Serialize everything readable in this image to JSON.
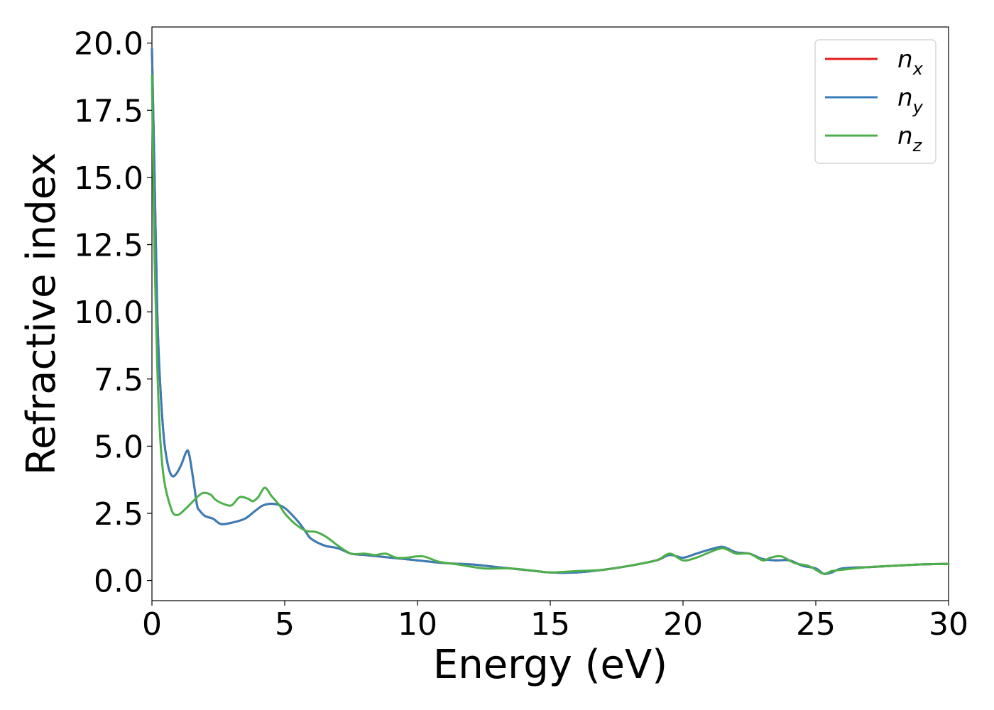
{
  "chart_data": {
    "type": "line",
    "title": "",
    "xlabel": "Energy (eV)",
    "ylabel": "Refractive index",
    "xlim": [
      0,
      30
    ],
    "ylim": [
      -0.75,
      20.6
    ],
    "xticks": [
      0,
      5,
      10,
      15,
      20,
      25,
      30
    ],
    "yticks": [
      0.0,
      2.5,
      5.0,
      7.5,
      10.0,
      12.5,
      15.0,
      17.5,
      20.0
    ],
    "xtick_labels": [
      "0",
      "5",
      "10",
      "15",
      "20",
      "25",
      "30"
    ],
    "ytick_labels": [
      "0.0",
      "2.5",
      "5.0",
      "7.5",
      "10.0",
      "12.5",
      "15.0",
      "17.5",
      "20.0"
    ],
    "grid": false,
    "legend_position": "top-right",
    "series": [
      {
        "name": "n_x",
        "label_base": "n",
        "label_sub": "x",
        "color": "#e41a1c",
        "x": [
          0,
          0.1,
          0.2,
          0.3,
          0.45,
          0.6,
          0.75,
          0.9,
          1.1,
          1.3,
          1.4,
          1.55,
          1.7,
          1.8,
          2.0,
          2.3,
          2.6,
          3.0,
          3.5,
          3.9,
          4.2,
          4.6,
          5.0,
          5.5,
          5.8,
          6.0,
          6.5,
          7.0,
          7.5,
          8.0,
          8.5,
          9.0,
          10.0,
          11.0,
          12.0,
          13.0,
          14.0,
          15.0,
          16.0,
          17.0,
          18.0,
          19.0,
          19.5,
          20.0,
          20.5,
          21.0,
          21.5,
          22.0,
          22.5,
          23.0,
          23.5,
          24.0,
          24.5,
          25.0,
          25.3,
          25.6,
          26.0,
          27.0,
          28.0,
          29.0,
          30.0
        ],
        "y": [
          19.8,
          15.0,
          10.0,
          7.5,
          5.3,
          4.3,
          3.9,
          3.95,
          4.3,
          4.8,
          4.7,
          3.8,
          2.8,
          2.6,
          2.4,
          2.3,
          2.1,
          2.15,
          2.3,
          2.6,
          2.8,
          2.85,
          2.7,
          2.2,
          1.8,
          1.55,
          1.3,
          1.2,
          1.0,
          0.95,
          0.9,
          0.85,
          0.75,
          0.65,
          0.6,
          0.5,
          0.4,
          0.3,
          0.3,
          0.4,
          0.55,
          0.75,
          0.95,
          0.85,
          1.0,
          1.15,
          1.25,
          1.05,
          1.0,
          0.8,
          0.75,
          0.75,
          0.55,
          0.45,
          0.25,
          0.3,
          0.45,
          0.5,
          0.55,
          0.6,
          0.62
        ]
      },
      {
        "name": "n_y",
        "label_base": "n",
        "label_sub": "y",
        "color": "#377eb8",
        "x": [
          0,
          0.1,
          0.2,
          0.3,
          0.45,
          0.6,
          0.75,
          0.9,
          1.1,
          1.3,
          1.4,
          1.55,
          1.7,
          1.8,
          2.0,
          2.3,
          2.6,
          3.0,
          3.5,
          3.9,
          4.2,
          4.6,
          5.0,
          5.5,
          5.8,
          6.0,
          6.5,
          7.0,
          7.5,
          8.0,
          8.5,
          9.0,
          10.0,
          11.0,
          12.0,
          13.0,
          14.0,
          15.0,
          16.0,
          17.0,
          18.0,
          19.0,
          19.5,
          20.0,
          20.5,
          21.0,
          21.5,
          22.0,
          22.5,
          23.0,
          23.5,
          24.0,
          24.5,
          25.0,
          25.3,
          25.6,
          26.0,
          27.0,
          28.0,
          29.0,
          30.0
        ],
        "y": [
          19.8,
          15.0,
          10.0,
          7.5,
          5.3,
          4.3,
          3.9,
          3.95,
          4.3,
          4.8,
          4.7,
          3.8,
          2.8,
          2.6,
          2.4,
          2.3,
          2.1,
          2.15,
          2.3,
          2.6,
          2.8,
          2.85,
          2.7,
          2.2,
          1.8,
          1.55,
          1.3,
          1.2,
          1.0,
          0.95,
          0.9,
          0.85,
          0.75,
          0.65,
          0.6,
          0.5,
          0.4,
          0.3,
          0.3,
          0.4,
          0.55,
          0.75,
          0.95,
          0.85,
          1.0,
          1.15,
          1.25,
          1.05,
          1.0,
          0.8,
          0.75,
          0.75,
          0.55,
          0.45,
          0.25,
          0.3,
          0.45,
          0.5,
          0.55,
          0.6,
          0.62
        ]
      },
      {
        "name": "n_z",
        "label_base": "n",
        "label_sub": "z",
        "color": "#4daf4a",
        "x": [
          0,
          0.1,
          0.2,
          0.3,
          0.4,
          0.5,
          0.65,
          0.8,
          1.0,
          1.3,
          1.6,
          1.9,
          2.2,
          2.4,
          2.7,
          3.0,
          3.3,
          3.6,
          3.8,
          4.0,
          4.25,
          4.5,
          4.8,
          5.0,
          5.4,
          5.8,
          6.2,
          6.6,
          7.0,
          7.5,
          8.0,
          8.4,
          8.8,
          9.2,
          9.6,
          10.2,
          10.8,
          11.5,
          12.5,
          13.5,
          14.5,
          15.0,
          16.0,
          17.0,
          18.0,
          19.0,
          19.5,
          20.0,
          20.5,
          21.0,
          21.5,
          22.0,
          22.5,
          23.0,
          23.3,
          23.7,
          24.2,
          24.7,
          25.0,
          25.3,
          25.6,
          26.0,
          27.0,
          28.0,
          29.0,
          30.0
        ],
        "y": [
          18.8,
          12.0,
          8.0,
          5.5,
          4.2,
          3.5,
          2.9,
          2.5,
          2.45,
          2.7,
          3.0,
          3.25,
          3.2,
          3.0,
          2.85,
          2.8,
          3.1,
          3.05,
          2.95,
          3.1,
          3.45,
          3.15,
          2.8,
          2.5,
          2.1,
          1.85,
          1.8,
          1.6,
          1.3,
          1.0,
          1.0,
          0.95,
          1.0,
          0.85,
          0.85,
          0.9,
          0.7,
          0.6,
          0.45,
          0.45,
          0.35,
          0.3,
          0.35,
          0.4,
          0.55,
          0.75,
          1.0,
          0.75,
          0.85,
          1.05,
          1.2,
          1.0,
          1.0,
          0.75,
          0.85,
          0.9,
          0.65,
          0.55,
          0.4,
          0.25,
          0.35,
          0.4,
          0.5,
          0.55,
          0.6,
          0.62
        ]
      }
    ]
  }
}
